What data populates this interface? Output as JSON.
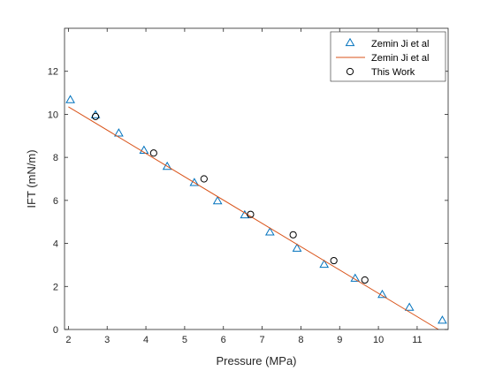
{
  "chart_data": {
    "type": "scatter",
    "title": "",
    "xlabel": "Pressure (MPa)",
    "ylabel": "IFT (mN/m)",
    "xlim": [
      1.9,
      11.8
    ],
    "ylim": [
      0,
      14
    ],
    "x_ticks": [
      2,
      3,
      4,
      5,
      6,
      7,
      8,
      9,
      10,
      11
    ],
    "y_ticks": [
      0,
      2,
      4,
      6,
      8,
      10,
      12
    ],
    "grid": false,
    "legend_position": "top-right",
    "series": [
      {
        "name": "Zemin Ji et al",
        "style": "triangle-markers",
        "color": "#0072BD",
        "x": [
          2.05,
          2.7,
          3.3,
          3.95,
          4.55,
          5.25,
          5.85,
          6.55,
          7.2,
          7.9,
          8.6,
          9.4,
          10.1,
          10.8,
          11.65
        ],
        "y": [
          10.65,
          9.95,
          9.1,
          8.3,
          7.55,
          6.8,
          5.95,
          5.3,
          4.5,
          3.75,
          3.0,
          2.35,
          1.6,
          1.0,
          0.4
        ]
      },
      {
        "name": "Zemin Ji et al",
        "style": "line",
        "color": "#D95319",
        "x": [
          2.0,
          11.55
        ],
        "y": [
          10.35,
          0.0
        ]
      },
      {
        "name": "This Work",
        "style": "circle-markers",
        "color": "#000000",
        "x": [
          2.7,
          4.2,
          5.5,
          6.7,
          7.8,
          8.85,
          9.65
        ],
        "y": [
          9.9,
          8.2,
          7.0,
          5.35,
          4.4,
          3.2,
          2.3
        ]
      }
    ]
  }
}
